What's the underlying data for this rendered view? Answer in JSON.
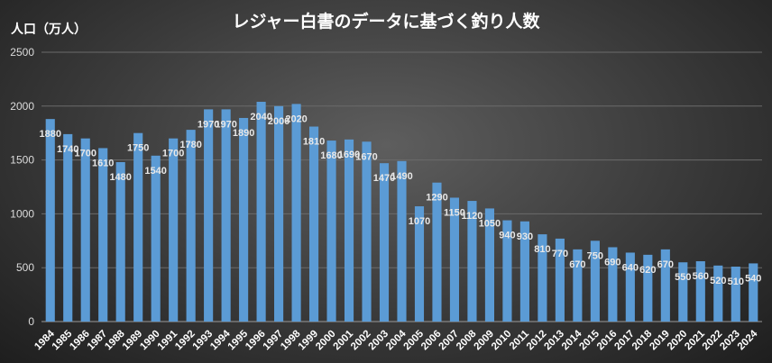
{
  "chart_data": {
    "type": "bar",
    "title": "レジャー白書のデータに基づく釣り人数",
    "ylabel": "人口（万人）",
    "xlabel": "",
    "ylim": [
      0,
      2500
    ],
    "yticks": [
      0,
      500,
      1000,
      1500,
      2000,
      2500
    ],
    "grid": true,
    "bar_color": "#5b9bd5",
    "categories": [
      "1984",
      "1985",
      "1986",
      "1987",
      "1988",
      "1989",
      "1990",
      "1991",
      "1992",
      "1993",
      "1994",
      "1995",
      "1996",
      "1997",
      "1998",
      "1999",
      "2000",
      "2001",
      "2002",
      "2003",
      "2004",
      "2005",
      "2006",
      "2007",
      "2008",
      "2009",
      "2010",
      "2011",
      "2012",
      "2013",
      "2014",
      "2015",
      "2016",
      "2017",
      "2018",
      "2019",
      "2020",
      "2021",
      "2022",
      "2023",
      "2024"
    ],
    "values": [
      1880,
      1740,
      1700,
      1610,
      1480,
      1750,
      1540,
      1700,
      1780,
      1970,
      1970,
      1890,
      2040,
      2000,
      2020,
      1810,
      1680,
      1690,
      1670,
      1470,
      1490,
      1070,
      1290,
      1150,
      1120,
      1050,
      940,
      930,
      810,
      770,
      670,
      750,
      690,
      640,
      620,
      670,
      550,
      560,
      520,
      510,
      540
    ]
  }
}
